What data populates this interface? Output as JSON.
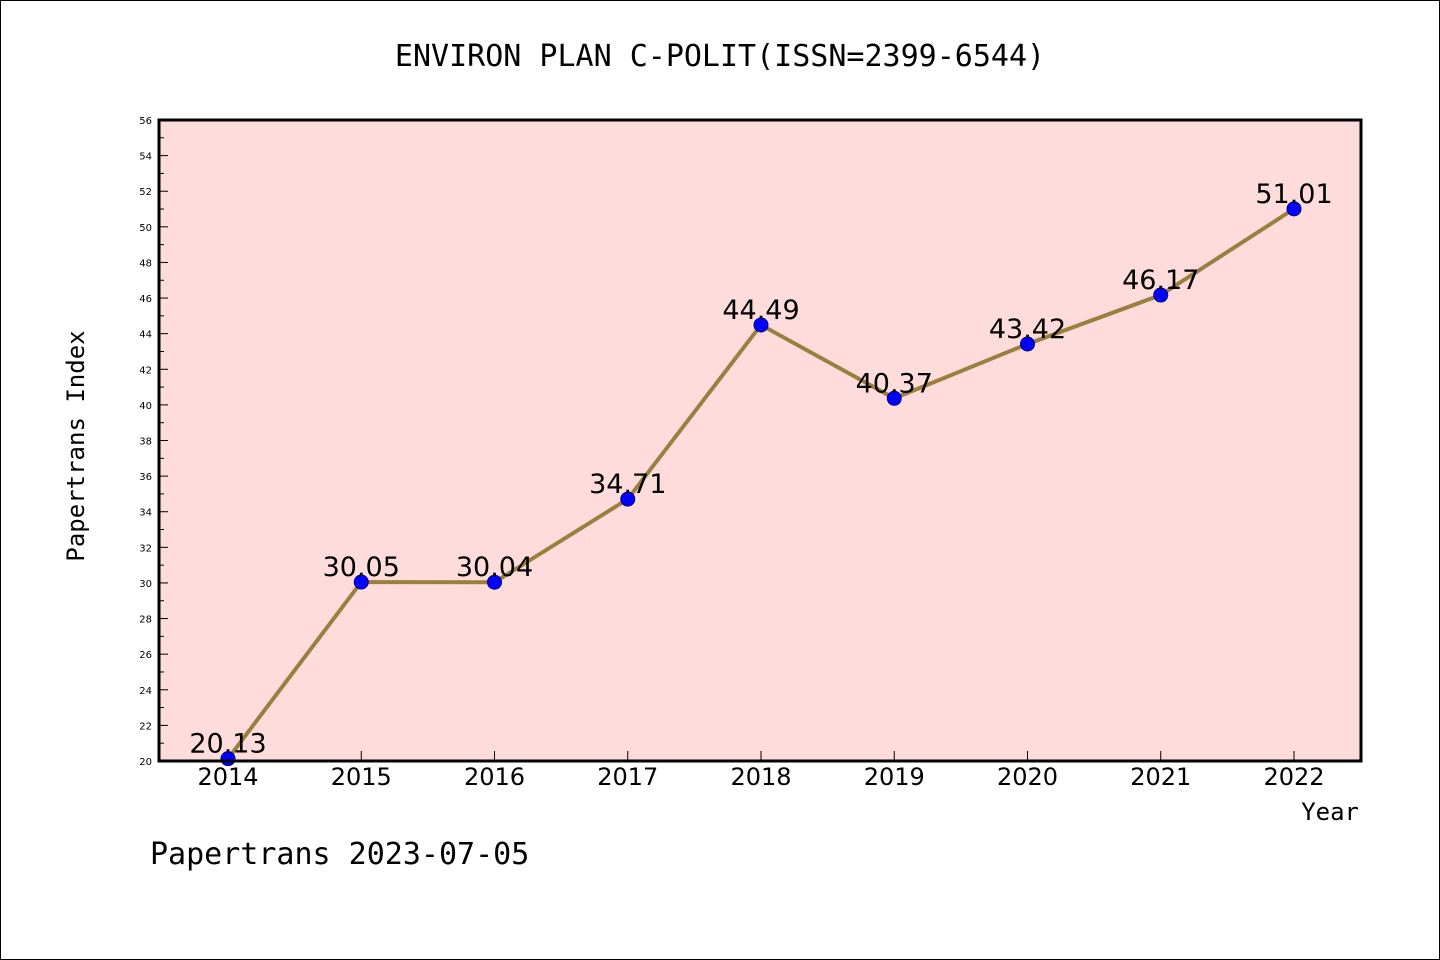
{
  "chart_data": {
    "type": "line",
    "title": "ENVIRON PLAN C-POLIT(ISSN=2399-6544)",
    "xlabel": "Year",
    "ylabel": "Papertrans Index",
    "categories": [
      "2014",
      "2015",
      "2016",
      "2017",
      "2018",
      "2019",
      "2020",
      "2021",
      "2022"
    ],
    "series": [
      {
        "values": [
          20.13,
          30.05,
          30.04,
          34.71,
          44.49,
          40.37,
          43.42,
          46.17,
          51.01
        ],
        "labels": [
          "20.13",
          "30.05",
          "30.04",
          "34.71",
          "44.49",
          "40.37",
          "43.42",
          "46.17",
          "51.01"
        ],
        "line_color": "#9b7f3f",
        "marker_color": "#0000ff"
      }
    ],
    "ylim": [
      20,
      56
    ],
    "yticks": [
      "20",
      "22",
      "24",
      "26",
      "28",
      "30",
      "32",
      "34",
      "36",
      "38",
      "40",
      "42",
      "44",
      "46",
      "48",
      "50",
      "52",
      "54",
      "56"
    ],
    "grid": false,
    "legend": "none",
    "plot_background": "#ffdcdc"
  },
  "footer": {
    "text": "Papertrans 2023-07-05"
  }
}
